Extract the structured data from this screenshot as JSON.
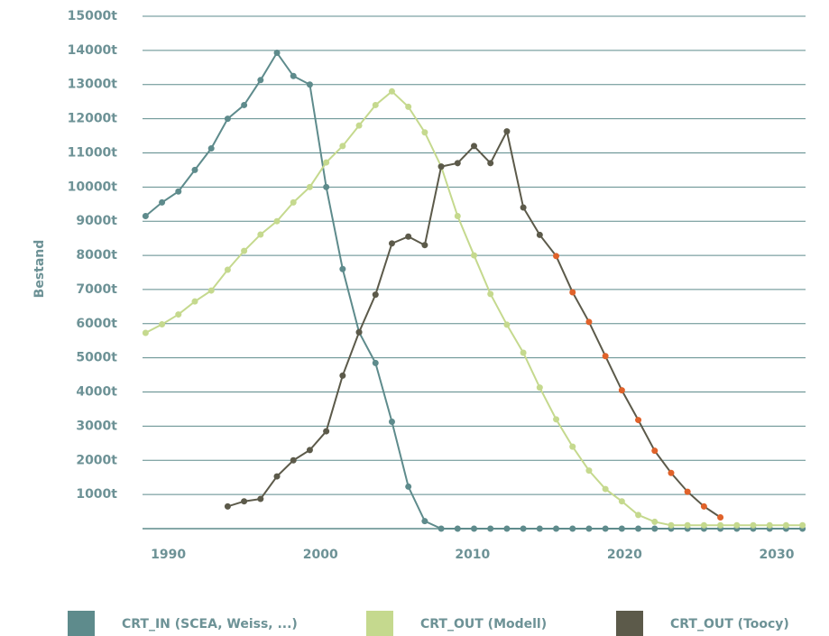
{
  "chart_data": {
    "type": "line",
    "y_label": "Bestand",
    "x": [
      1988.5,
      1989.58,
      1990.66,
      1991.74,
      1992.82,
      1993.9,
      1994.98,
      1996.06,
      1997.14,
      1998.22,
      1999.3,
      2000.38,
      2001.46,
      2002.54,
      2003.62,
      2004.7,
      2005.78,
      2006.86,
      2007.94,
      2009.02,
      2010.1,
      2011.18,
      2012.26,
      2013.34,
      2014.42,
      2015.5,
      2016.58,
      2017.66,
      2018.74,
      2019.82,
      2020.9,
      2021.98,
      2023.06,
      2024.14,
      2025.22,
      2026.3,
      2027.38,
      2028.46,
      2029.54,
      2030.62,
      2031.7
    ],
    "xlim": [
      1988.3,
      2031.9
    ],
    "xticks": [
      1990,
      2000,
      2010,
      2020,
      2030
    ],
    "ylim": [
      0,
      15000
    ],
    "yticks": [
      {
        "value": 1000,
        "label": "1000t"
      },
      {
        "value": 2000,
        "label": "2000t"
      },
      {
        "value": 3000,
        "label": "3000t"
      },
      {
        "value": 4000,
        "label": "4000t"
      },
      {
        "value": 5000,
        "label": "5000t"
      },
      {
        "value": 6000,
        "label": "6000t"
      },
      {
        "value": 7000,
        "label": "7000t"
      },
      {
        "value": 8000,
        "label": "8000t"
      },
      {
        "value": 9000,
        "label": "9000t"
      },
      {
        "value": 10000,
        "label": "10000t"
      },
      {
        "value": 11000,
        "label": "11000t"
      },
      {
        "value": 12000,
        "label": "12000t"
      },
      {
        "value": 13000,
        "label": "13000t"
      },
      {
        "value": 14000,
        "label": "14000t"
      },
      {
        "value": 15000,
        "label": "15000t"
      }
    ],
    "grid": true,
    "series": [
      {
        "name": "CRT_IN (SCEA, Weiss, ...)",
        "color": "#5e8b8c",
        "values": [
          9150,
          9550,
          9870,
          10500,
          11130,
          12000,
          12400,
          13130,
          13930,
          13250,
          13000,
          10000,
          7600,
          5750,
          4850,
          3130,
          1230,
          220,
          0,
          0,
          0,
          0,
          0,
          0,
          0,
          0,
          0,
          0,
          0,
          0,
          0,
          0,
          0,
          0,
          0,
          0,
          0,
          0,
          0,
          0,
          0
        ]
      },
      {
        "name": "CRT_OUT (Modell)",
        "color": "#c5d98e",
        "values": [
          5730,
          5980,
          6270,
          6650,
          6970,
          7580,
          8130,
          8610,
          9000,
          9550,
          10000,
          10720,
          11200,
          11800,
          12400,
          12800,
          12350,
          11600,
          10600,
          9150,
          8000,
          6870,
          5970,
          5150,
          4130,
          3200,
          2400,
          1700,
          1160,
          800,
          400,
          200,
          100,
          100,
          100,
          100,
          100,
          100,
          100,
          100,
          100
        ]
      },
      {
        "name": "CRT_OUT (Toocy)",
        "color": "#5c5a4a",
        "values": [
          null,
          null,
          null,
          null,
          null,
          650,
          800,
          870,
          1530,
          2000,
          2300,
          2850,
          4480,
          5750,
          6850,
          8350,
          8550,
          8300,
          10600,
          10700,
          11200,
          10700,
          11630,
          9400,
          8600,
          7980,
          6920,
          6050,
          5050,
          4050,
          3180,
          2280,
          1630,
          1080,
          650,
          330,
          null,
          null,
          null,
          null,
          null
        ],
        "point_colors": [
          null,
          null,
          null,
          null,
          null,
          "#5c5a4a",
          "#5c5a4a",
          "#5c5a4a",
          "#5c5a4a",
          "#5c5a4a",
          "#5c5a4a",
          "#5c5a4a",
          "#5c5a4a",
          "#5c5a4a",
          "#5c5a4a",
          "#5c5a4a",
          "#5c5a4a",
          "#5c5a4a",
          "#5c5a4a",
          "#5c5a4a",
          "#5c5a4a",
          "#5c5a4a",
          "#5c5a4a",
          "#5c5a4a",
          "#5c5a4a",
          "#e0622a",
          "#e0622a",
          "#e0622a",
          "#e0622a",
          "#e0622a",
          "#e0622a",
          "#e0622a",
          "#e0622a",
          "#e0622a",
          "#e0622a",
          "#e0622a",
          null,
          null,
          null,
          null,
          null
        ]
      }
    ]
  }
}
